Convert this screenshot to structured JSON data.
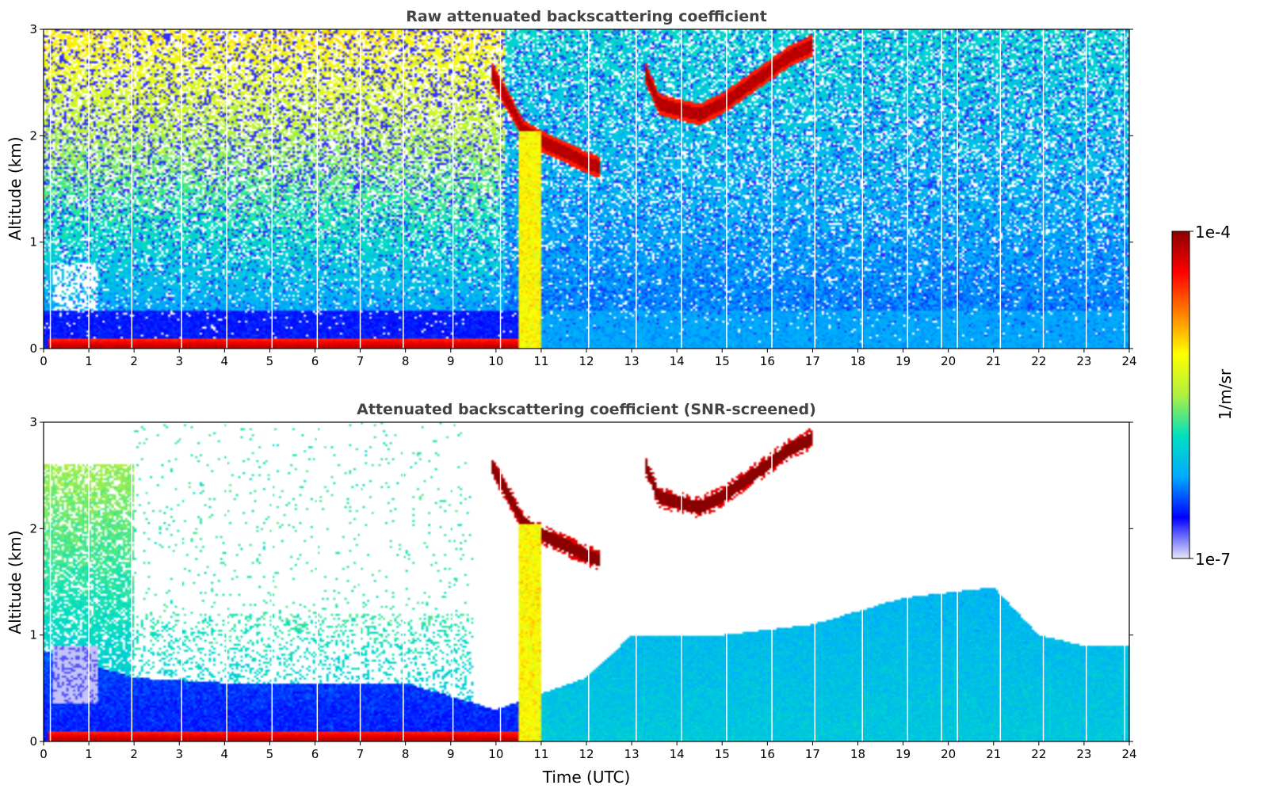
{
  "chart_data": [
    {
      "type": "heatmap",
      "title": "Raw attenuated backscattering coefficient",
      "xlabel": "",
      "ylabel": "Altitude (km)",
      "xlim": [
        0,
        24
      ],
      "ylim": [
        0,
        3
      ],
      "xticks": [
        "0",
        "1",
        "2",
        "3",
        "4",
        "5",
        "6",
        "7",
        "8",
        "9",
        "10",
        "11",
        "12",
        "13",
        "14",
        "15",
        "16",
        "17",
        "18",
        "19",
        "20",
        "21",
        "22",
        "23",
        "24"
      ],
      "yticks": [
        "0",
        "1",
        "2",
        "3"
      ],
      "features": {
        "surface_layer": {
          "x": [
            0.1,
            10.5
          ],
          "altitude_km": [
            0.0,
            0.1
          ],
          "level": "high"
        },
        "plume_column": {
          "x": [
            10.5,
            11.0
          ],
          "altitude_km": [
            0.0,
            2.1
          ],
          "level": "medium-high"
        },
        "cloud_layer_1": {
          "points": [
            [
              9.9,
              2.6
            ],
            [
              10.3,
              2.3
            ],
            [
              10.6,
              2.05
            ],
            [
              11.0,
              1.95
            ],
            [
              11.5,
              1.85
            ],
            [
              12.0,
              1.75
            ],
            [
              12.3,
              1.7
            ]
          ]
        },
        "cloud_layer_2": {
          "points": [
            [
              13.3,
              2.6
            ],
            [
              13.6,
              2.3
            ],
            [
              14.0,
              2.25
            ],
            [
              14.5,
              2.2
            ],
            [
              15.0,
              2.3
            ],
            [
              15.5,
              2.45
            ],
            [
              16.0,
              2.6
            ],
            [
              16.5,
              2.75
            ],
            [
              17.0,
              2.85
            ]
          ]
        },
        "bad_profile_times": [
          0.15,
          1.0,
          1.95,
          3.05,
          4.05,
          5.05,
          6.05,
          7.0,
          7.95,
          9.05,
          10.1,
          12.05,
          13.1,
          14.1,
          15.1,
          16.1,
          17.05,
          18.1,
          19.1,
          19.85,
          20.2,
          21.15,
          22.1,
          23.05,
          23.9
        ]
      }
    },
    {
      "type": "heatmap",
      "title": "Attenuated backscattering coefficient (SNR-screened)",
      "xlabel": "Time (UTC)",
      "ylabel": "Altitude (km)",
      "xlim": [
        0,
        24
      ],
      "ylim": [
        0,
        3
      ],
      "xticks": [
        "0",
        "1",
        "2",
        "3",
        "4",
        "5",
        "6",
        "7",
        "8",
        "9",
        "10",
        "11",
        "12",
        "13",
        "14",
        "15",
        "16",
        "17",
        "18",
        "19",
        "20",
        "21",
        "22",
        "23",
        "24"
      ],
      "yticks": [
        "0",
        "1",
        "2",
        "3"
      ],
      "features": {
        "surface_layer": {
          "x": [
            0.1,
            10.5
          ],
          "altitude_km": [
            0.0,
            0.1
          ],
          "level": "high"
        },
        "plume_column": {
          "x": [
            10.5,
            11.0
          ],
          "altitude_km": [
            0.0,
            2.1
          ],
          "level": "medium-high"
        },
        "boundary_layer_top_km": [
          [
            0,
            0.85
          ],
          [
            2,
            0.6
          ],
          [
            4,
            0.55
          ],
          [
            6,
            0.55
          ],
          [
            8,
            0.55
          ],
          [
            10,
            0.3
          ],
          [
            12,
            0.6
          ],
          [
            13,
            1.0
          ],
          [
            15,
            1.0
          ],
          [
            17,
            1.1
          ],
          [
            19,
            1.35
          ],
          [
            21,
            1.45
          ],
          [
            22,
            1.0
          ],
          [
            23,
            0.9
          ],
          [
            24,
            0.9
          ]
        ]
      }
    }
  ],
  "colorbar": {
    "label": "1/m/sr",
    "max_label": "1e-4",
    "min_label": "1e-7",
    "scale": "log",
    "colormap": [
      "#e8e8f8",
      "#0000ff",
      "#00aaff",
      "#00e0c0",
      "#b0f040",
      "#ffff00",
      "#ff8000",
      "#ff0000",
      "#8b0000"
    ]
  }
}
